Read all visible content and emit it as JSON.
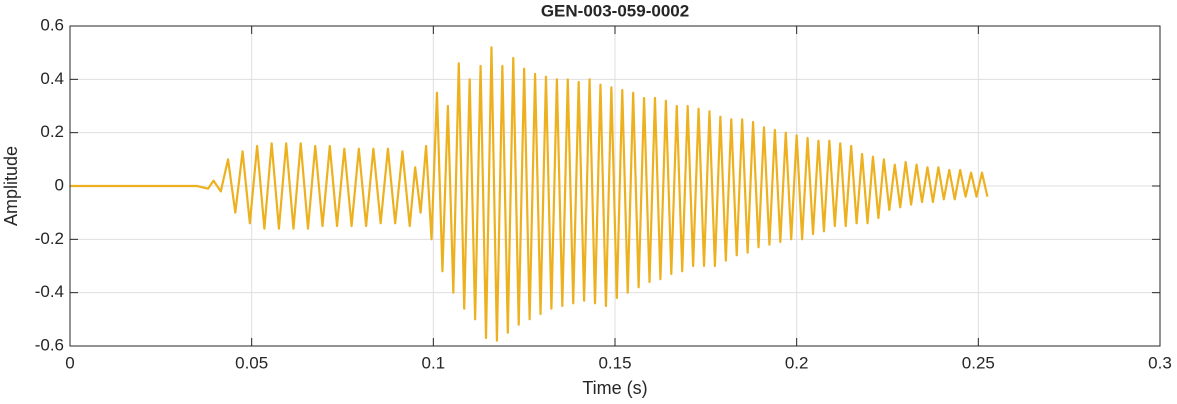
{
  "chart_data": {
    "type": "line",
    "title": "GEN-003-059-0002",
    "x_label": "Time (s)",
    "y_label": "Amplitude",
    "color": "#edb120",
    "grid": true,
    "xlim": [
      0,
      0.3
    ],
    "ylim": [
      -0.6,
      0.6
    ],
    "xticks": [
      0,
      0.05,
      0.1,
      0.15,
      0.2,
      0.25,
      0.3
    ],
    "yticks": [
      -0.6,
      -0.4,
      -0.2,
      0,
      0.2,
      0.4,
      0.6
    ],
    "x": [
      0,
      0.035,
      0.038,
      0.0395,
      0.0415,
      0.0435,
      0.0455,
      0.0475,
      0.0495,
      0.0515,
      0.0535,
      0.0555,
      0.0575,
      0.0595,
      0.0615,
      0.0635,
      0.0655,
      0.0675,
      0.0695,
      0.0715,
      0.0735,
      0.0755,
      0.0775,
      0.0795,
      0.0815,
      0.0835,
      0.0855,
      0.0875,
      0.0895,
      0.0915,
      0.0935,
      0.095,
      0.0965,
      0.098,
      0.0995,
      0.101,
      0.1025,
      0.104,
      0.1055,
      0.107,
      0.1085,
      0.11,
      0.1115,
      0.113,
      0.1145,
      0.116,
      0.1175,
      0.119,
      0.1205,
      0.122,
      0.1235,
      0.125,
      0.1265,
      0.128,
      0.1295,
      0.131,
      0.1325,
      0.134,
      0.1355,
      0.137,
      0.1385,
      0.14,
      0.1415,
      0.143,
      0.1445,
      0.146,
      0.1475,
      0.149,
      0.1505,
      0.152,
      0.1535,
      0.155,
      0.1565,
      0.158,
      0.1595,
      0.161,
      0.1625,
      0.164,
      0.1655,
      0.167,
      0.1685,
      0.17,
      0.1715,
      0.173,
      0.1745,
      0.176,
      0.1775,
      0.179,
      0.1805,
      0.182,
      0.1835,
      0.185,
      0.1865,
      0.188,
      0.1895,
      0.191,
      0.1925,
      0.194,
      0.1955,
      0.197,
      0.1985,
      0.2,
      0.2015,
      0.203,
      0.2045,
      0.206,
      0.2075,
      0.209,
      0.2105,
      0.212,
      0.2135,
      0.215,
      0.2165,
      0.218,
      0.2195,
      0.221,
      0.2225,
      0.224,
      0.2255,
      0.227,
      0.2285,
      0.23,
      0.2315,
      0.233,
      0.2345,
      0.236,
      0.2375,
      0.239,
      0.2405,
      0.242,
      0.2435,
      0.245,
      0.2465,
      0.248,
      0.2495,
      0.251,
      0.2525
    ],
    "values": [
      0,
      0,
      -0.01,
      0.02,
      -0.02,
      0.1,
      -0.1,
      0.13,
      -0.14,
      0.15,
      -0.16,
      0.16,
      -0.16,
      0.16,
      -0.16,
      0.16,
      -0.16,
      0.15,
      -0.15,
      0.15,
      -0.15,
      0.14,
      -0.15,
      0.14,
      -0.15,
      0.14,
      -0.14,
      0.14,
      -0.14,
      0.13,
      -0.15,
      0.07,
      -0.1,
      0.15,
      -0.2,
      0.35,
      -0.32,
      0.3,
      -0.4,
      0.46,
      -0.46,
      0.4,
      -0.5,
      0.45,
      -0.57,
      0.52,
      -0.58,
      0.45,
      -0.55,
      0.48,
      -0.52,
      0.44,
      -0.5,
      0.42,
      -0.48,
      0.41,
      -0.46,
      0.4,
      -0.45,
      0.4,
      -0.44,
      0.39,
      -0.43,
      0.4,
      -0.44,
      0.38,
      -0.45,
      0.37,
      -0.42,
      0.36,
      -0.4,
      0.35,
      -0.38,
      0.33,
      -0.36,
      0.33,
      -0.35,
      0.32,
      -0.33,
      0.3,
      -0.32,
      0.3,
      -0.3,
      0.29,
      -0.3,
      0.28,
      -0.3,
      0.26,
      -0.28,
      0.25,
      -0.26,
      0.25,
      -0.25,
      0.24,
      -0.23,
      0.22,
      -0.22,
      0.21,
      -0.21,
      0.2,
      -0.2,
      0.19,
      -0.2,
      0.18,
      -0.18,
      0.17,
      -0.17,
      0.17,
      -0.15,
      0.16,
      -0.15,
      0.15,
      -0.14,
      0.12,
      -0.14,
      0.11,
      -0.12,
      0.1,
      -0.09,
      0.08,
      -0.08,
      0.09,
      -0.07,
      0.08,
      -0.06,
      0.07,
      -0.06,
      0.07,
      -0.05,
      0.06,
      -0.05,
      0.06,
      -0.04,
      0.05,
      -0.04,
      0.05,
      -0.04
    ]
  }
}
